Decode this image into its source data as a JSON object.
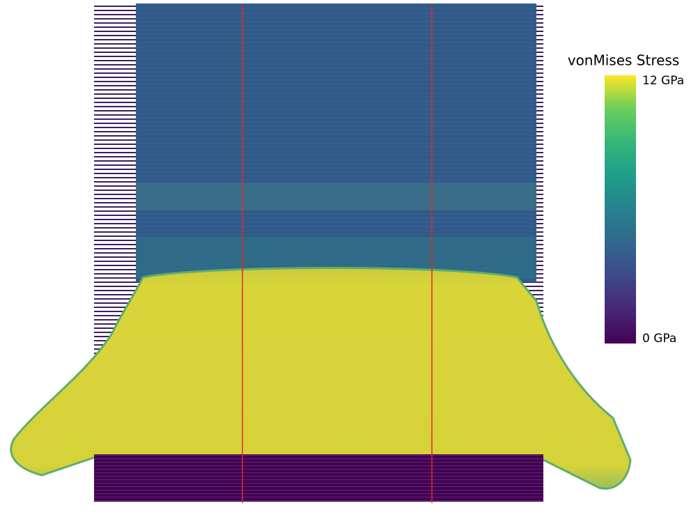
{
  "colorbar": {
    "title": "vonMises Stress",
    "range": [
      0,
      12
    ],
    "ticks": [
      {
        "value": 0,
        "label": "0 GPa"
      },
      {
        "value": 12,
        "label": "12 GPa"
      }
    ]
  }
}
